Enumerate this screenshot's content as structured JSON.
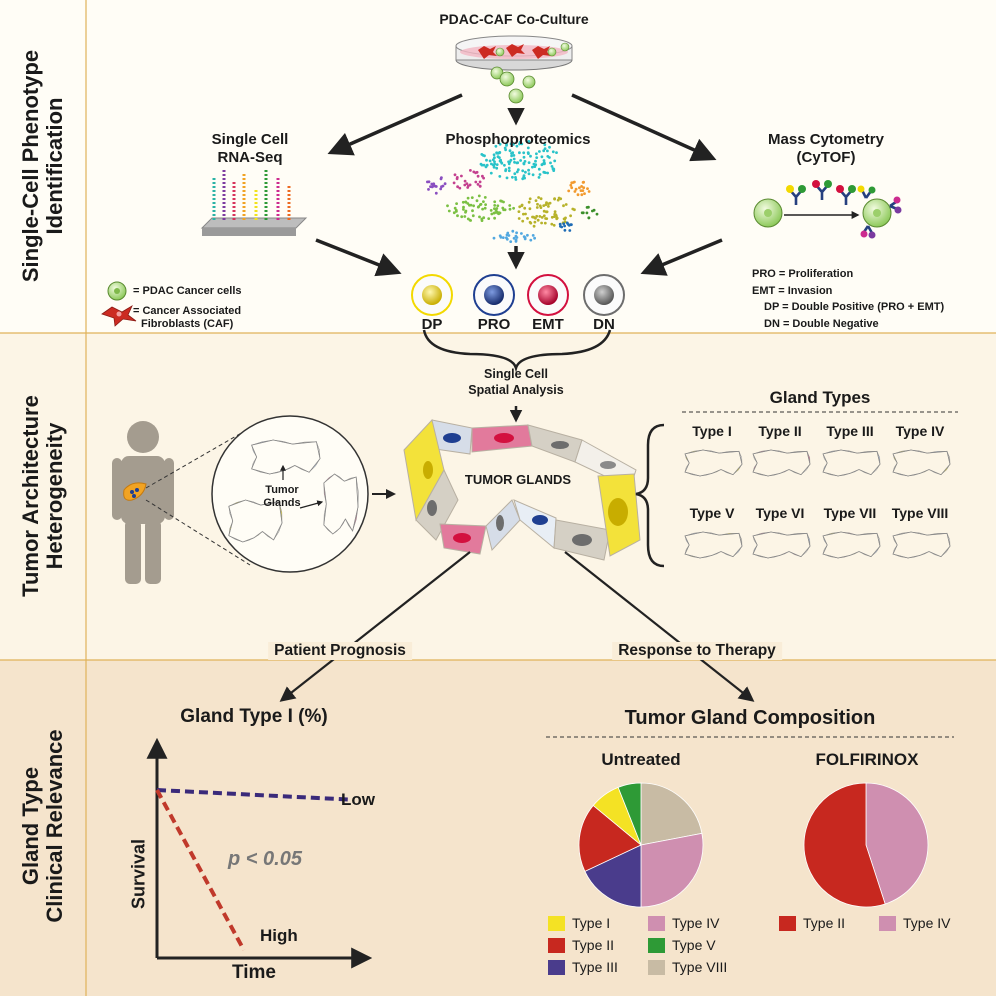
{
  "sections": [
    {
      "id": "top",
      "label_lines": [
        "Single-Cell Phenotype",
        "Identification"
      ],
      "bg": "#fffdf6"
    },
    {
      "id": "middle",
      "label_lines": [
        "Tumor Architecture",
        "Heterogeneity"
      ],
      "bg": "#fcf5e6"
    },
    {
      "id": "bottom",
      "label_lines": [
        "Gland Type",
        "Clinical Relevance"
      ],
      "bg": "#f5e4cc"
    }
  ],
  "top": {
    "coculture_title": "PDAC-CAF Co-Culture",
    "rnaseq_lines": [
      "Single Cell",
      "RNA-Seq"
    ],
    "phospho_title": "Phosphoproteomics",
    "cytof_lines": [
      "Mass Cytometry",
      "(CyTOF)"
    ],
    "legend": {
      "pdac": "= PDAC Cancer cells",
      "caf_lines": [
        "= Cancer Associated",
        "Fibroblasts (CAF)"
      ]
    },
    "phenotypes": [
      {
        "label": "DP",
        "color": "#f3d900"
      },
      {
        "label": "PRO",
        "color": "#1f3f91"
      },
      {
        "label": "EMT",
        "color": "#d3103f"
      },
      {
        "label": "DN",
        "color": "#6d6d6d"
      }
    ],
    "abbreviations": [
      "PRO = Proliferation",
      "EMT = Invasion",
      "DP = Double Positive (PRO + EMT)",
      "DN = Double Negative"
    ]
  },
  "middle": {
    "spatial_lines": [
      "Single Cell",
      "Spatial Analysis"
    ],
    "tumor_glands_inset_lines": [
      "Tumor",
      "Glands"
    ],
    "tumor_glands_title": "TUMOR GLANDS",
    "gland_types_title": "Gland Types",
    "gland_types": [
      "Type I",
      "Type II",
      "Type III",
      "Type IV",
      "Type V",
      "Type VI",
      "Type VII",
      "Type VIII"
    ]
  },
  "bottom": {
    "prognosis_label": "Patient Prognosis",
    "therapy_label": "Response to Therapy",
    "survival_title": "Gland Type I (%)",
    "survival_ylabel": "Survival",
    "survival_xlabel": "Time",
    "low_label": "Low",
    "high_label": "High",
    "pvalue": "p < 0.05",
    "composition_title": "Tumor Gland Composition",
    "untreated_label": "Untreated",
    "folfirinox_label": "FOLFIRINOX"
  },
  "chart_data": [
    {
      "type": "line",
      "title": "Gland Type I (%)",
      "xlabel": "Time",
      "ylabel": "Survival",
      "series": [
        {
          "name": "Low",
          "color": "#3a2a7a",
          "style": "dashed",
          "x": [
            0,
            1
          ],
          "y": [
            1.0,
            0.94
          ]
        },
        {
          "name": "High",
          "color": "#c0392b",
          "style": "dashed",
          "x": [
            0,
            0.45
          ],
          "y": [
            1.0,
            0.0
          ]
        }
      ]
    },
    {
      "type": "pie",
      "title": "Untreated",
      "slices": [
        {
          "label": "Type VIII",
          "value": 22,
          "color": "#c8bba4"
        },
        {
          "label": "Type IV",
          "value": 28,
          "color": "#cf8fb0"
        },
        {
          "label": "Type III",
          "value": 18,
          "color": "#4a3c8c"
        },
        {
          "label": "Type II",
          "value": 18,
          "color": "#c7281f"
        },
        {
          "label": "Type I",
          "value": 8,
          "color": "#f4e224"
        },
        {
          "label": "Type V",
          "value": 6,
          "color": "#2e9a36"
        }
      ],
      "legend": [
        "Type I",
        "Type II",
        "Type III",
        "Type IV",
        "Type V",
        "Type VIII"
      ]
    },
    {
      "type": "pie",
      "title": "FOLFIRINOX",
      "slices": [
        {
          "label": "Type IV",
          "value": 45,
          "color": "#cf8fb0"
        },
        {
          "label": "Type II",
          "value": 55,
          "color": "#c7281f"
        }
      ],
      "legend": [
        "Type II",
        "Type IV"
      ]
    }
  ]
}
